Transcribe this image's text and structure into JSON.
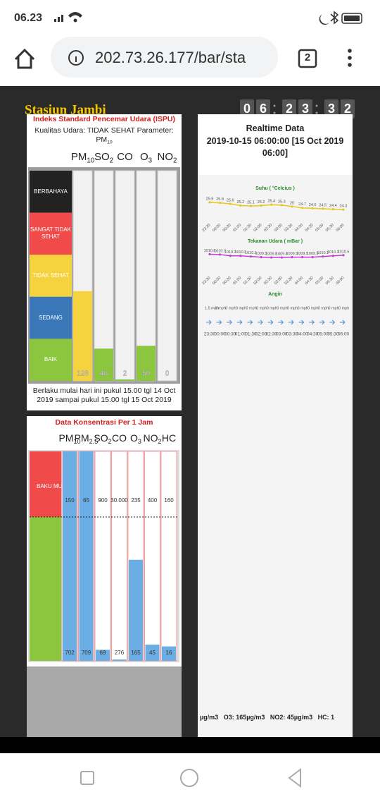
{
  "status_bar": {
    "time": "06.23"
  },
  "browser": {
    "url": "202.73.26.177/bar/sta",
    "tab_count": "2"
  },
  "station": {
    "title": "Stasiun Jambi",
    "clock": [
      "0",
      "6",
      "2",
      "3",
      "3",
      "2"
    ]
  },
  "ispu": {
    "title": "Indeks Standard Pencemar Udara (ISPU)",
    "status": "Kualitas Udara: TIDAK SEHAT Parameter:",
    "status_param": {
      "text": "PM",
      "sub": "10"
    },
    "parameters": [
      {
        "text": "PM",
        "sub": "10"
      },
      {
        "text": "SO",
        "sub": "2"
      },
      {
        "text": "CO"
      },
      {
        "text": "O",
        "sub": "3"
      },
      {
        "text": "NO",
        "sub": "2"
      }
    ],
    "values": [
      128,
      46,
      2,
      50,
      0
    ],
    "ylim": [
      0,
      300
    ],
    "bar_colors": [
      "#f5d33f",
      "#8cc63f",
      "#8cc63f",
      "#8cc63f",
      "#8cc63f"
    ],
    "levels": [
      {
        "label": "BERBAHAYA",
        "color": "#222222"
      },
      {
        "label": "SANGAT TIDAK SEHAT",
        "color": "#f04a4a"
      },
      {
        "label": "TIDAK SEHAT",
        "color": "#f5d33f"
      },
      {
        "label": "SEDANG",
        "color": "#3a77b9"
      },
      {
        "label": "BAIK",
        "color": "#8cc63f"
      }
    ],
    "note": "Berlaku mulai hari ini pukul 15.00 tgl 14 Oct 2019 sampai pukul 15.00 tgl 15 Oct 2019"
  },
  "konsentrasi": {
    "title": "Data Konsentrasi Per 1 Jam",
    "parameters": [
      {
        "text": "PM",
        "sub": "10"
      },
      {
        "text": "PM",
        "sub": "2.5"
      },
      {
        "text": "SO",
        "sub": "2"
      },
      {
        "text": "CO"
      },
      {
        "text": "O",
        "sub": "3"
      },
      {
        "text": "NO",
        "sub": "2"
      },
      {
        "text": "HC"
      }
    ],
    "standard_label": "BAKU MUTU",
    "standards": [
      150,
      65,
      900,
      {
        "value": 30000,
        "label": "30.000"
      },
      235,
      400,
      160
    ],
    "values": [
      702,
      709,
      69,
      276,
      165,
      45,
      16
    ],
    "bar_color": "#6aaee5"
  },
  "realtime": {
    "title": "Realtime Data",
    "timestamp": "2019-10-15 06:00:00 [15 Oct 2019 06:00]",
    "times": [
      "23:30",
      "00:00",
      "00:30",
      "01:00",
      "01:30",
      "02:00",
      "02:30",
      "03:00",
      "03:30",
      "04:00",
      "04:30",
      "05:00",
      "05:30",
      "06:00"
    ],
    "charts": [
      {
        "type": "line",
        "title": "Suhu ( °Celcius )",
        "color": "#e8c820",
        "ylim": [
          22,
          27
        ],
        "values": [
          25.9,
          25.8,
          25.6,
          25.2,
          25.1,
          25.2,
          25.4,
          25.3,
          25,
          24.7,
          24.6,
          24.5,
          24.4,
          24.3
        ]
      },
      {
        "type": "line",
        "title": "Tekanan Udara ( mBar )",
        "color": "#c040d0",
        "ylim": [
          1005,
          1012
        ],
        "values": [
          1010.8,
          1010.7,
          1010.3,
          1010.3,
          1010.1,
          1009.9,
          1009.8,
          1009.8,
          1009.9,
          1009.9,
          1009.9,
          1010.1,
          1010.3,
          1010.5
        ]
      },
      {
        "type": "wind",
        "title": "Angin",
        "values": [
          "1.5 mph",
          "0 mph",
          "0 mph",
          "0 mph",
          "0 mph",
          "0 mph",
          "0 mph",
          "0 mph",
          "0 mph",
          "0 mph",
          "0 mph",
          "0 mph",
          "0 mph",
          "0 mph"
        ]
      }
    ],
    "ticker": "µg/m3   O3: 165µg/m3   NO2: 45µg/m3   HC: 1"
  }
}
